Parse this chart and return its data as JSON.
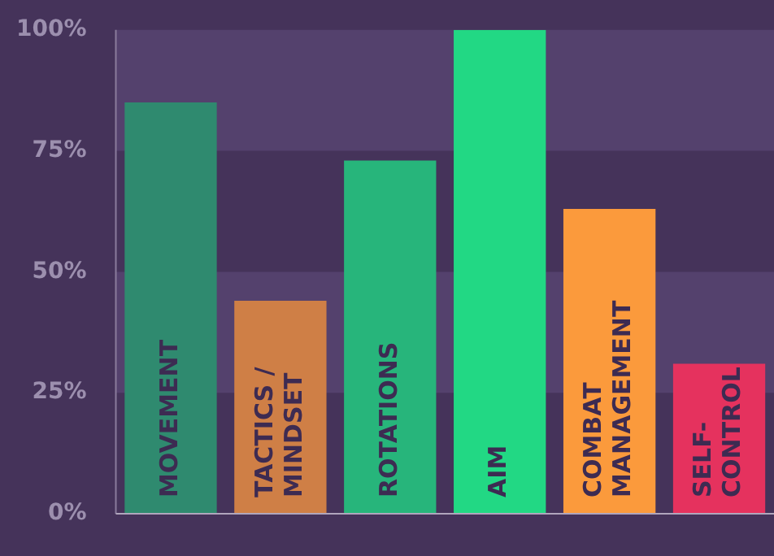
{
  "chart_data": {
    "type": "bar",
    "categories": [
      "MOVEMENT",
      "TACTICS /\nMINDSET",
      "ROTATIONS",
      "AIM",
      "COMBAT\nMANAGEMENT",
      "SELF-\nCONTROL"
    ],
    "values": [
      85,
      44,
      73,
      100,
      63,
      31
    ],
    "colors": [
      "#2f8a6f",
      "#cf7f46",
      "#27b57b",
      "#22d884",
      "#fb9a3c",
      "#e5325e"
    ],
    "ylim": [
      0,
      100
    ],
    "yticks": [
      {
        "value": 0,
        "label": "0%"
      },
      {
        "value": 25,
        "label": "25%"
      },
      {
        "value": 50,
        "label": "50%"
      },
      {
        "value": 75,
        "label": "75%"
      },
      {
        "value": 100,
        "label": "100%"
      }
    ],
    "bands": [
      {
        "axis": "y",
        "from": 25,
        "to": 50,
        "color": "#54416d"
      },
      {
        "axis": "y",
        "from": 75,
        "to": 100,
        "color": "#54416d"
      }
    ],
    "legend": false
  }
}
